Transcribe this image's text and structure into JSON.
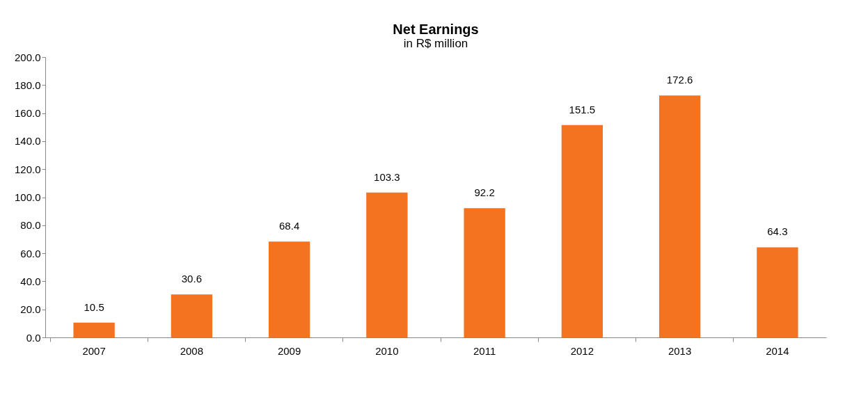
{
  "chart_data": {
    "type": "bar",
    "title": "Net Earnings",
    "subtitle": "in R$ million",
    "categories": [
      "2007",
      "2008",
      "2009",
      "2010",
      "2011",
      "2012",
      "2013",
      "2014"
    ],
    "values": [
      10.5,
      30.6,
      68.4,
      103.3,
      92.2,
      151.5,
      172.6,
      64.3
    ],
    "color": "#f37321",
    "ylim": [
      0,
      200
    ],
    "yticks": [
      {
        "value": 0,
        "label": "0.0"
      },
      {
        "value": 20,
        "label": "20.0"
      },
      {
        "value": 40,
        "label": "40.0"
      },
      {
        "value": 60,
        "label": "60.0"
      },
      {
        "value": 80,
        "label": "80.0"
      },
      {
        "value": 100,
        "label": "100.0"
      },
      {
        "value": 120,
        "label": "120.0"
      },
      {
        "value": 140,
        "label": "140.0"
      },
      {
        "value": 160,
        "label": "160.0"
      },
      {
        "value": 180,
        "label": "180.0"
      },
      {
        "value": 200,
        "label": "200.0"
      }
    ],
    "data_labels": true,
    "grid": false
  }
}
